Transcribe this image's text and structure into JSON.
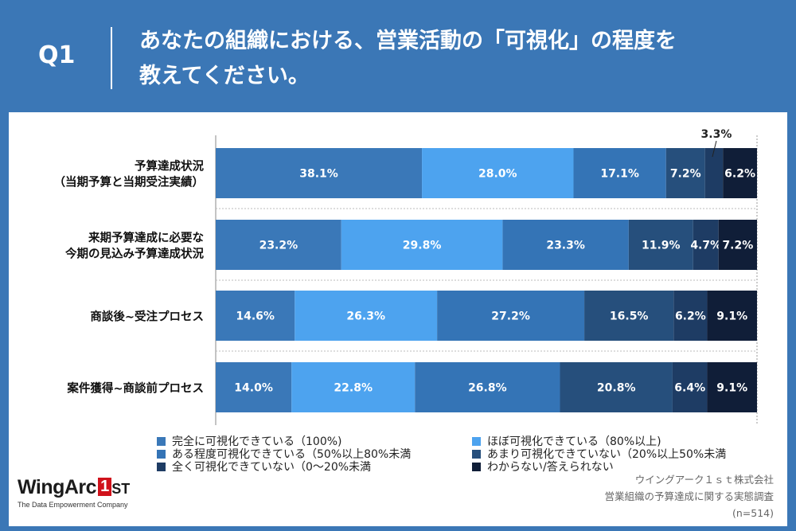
{
  "header": {
    "question_label": "Q1",
    "title_line1": "あなたの組織における、営業活動の「可視化」の程度を",
    "title_line2": "教えてください。"
  },
  "chart_data": {
    "type": "bar",
    "orientation": "horizontal",
    "stacked": true,
    "xlim": [
      0,
      100
    ],
    "categories": [
      [
        "予算達成状況",
        "（当期予算と当期受注実績）"
      ],
      [
        "来期予算達成に必要な",
        "今期の見込み予算達成状況"
      ],
      [
        "商談後~受注プロセス"
      ],
      [
        "案件獲得~商談前プロセス"
      ]
    ],
    "series": [
      {
        "name": "完全に可視化できている（100%)",
        "color": "#3a78b8",
        "values": [
          38.1,
          23.2,
          14.6,
          14.0
        ]
      },
      {
        "name": "ほぼ可視化できている（80%以上)",
        "color": "#4da3ef",
        "values": [
          28.0,
          29.8,
          26.3,
          22.8
        ]
      },
      {
        "name": "ある程度可視化できている（50%以上80%未満",
        "color": "#3474b6",
        "values": [
          17.1,
          23.3,
          27.2,
          26.8
        ]
      },
      {
        "name": "あまり可視化できていない（20%以上50%未満",
        "color": "#264f7c",
        "values": [
          7.2,
          11.9,
          16.5,
          20.8
        ]
      },
      {
        "name": "全く可視化できていない（0〜20%未満",
        "color": "#1e3c64",
        "values": [
          3.3,
          4.7,
          6.2,
          6.4
        ]
      },
      {
        "name": "わからない/答えられない",
        "color": "#101e38",
        "values": [
          6.2,
          7.2,
          9.1,
          9.1
        ]
      }
    ],
    "data_labels": [
      [
        "38.1%",
        "28.0%",
        "17.1%",
        "7.2%",
        "",
        "6.2%"
      ],
      [
        "23.2%",
        "29.8%",
        "23.3%",
        "11.9%",
        "4.7%",
        "7.2%"
      ],
      [
        "14.6%",
        "26.3%",
        "27.2%",
        "16.5%",
        "6.2%",
        "9.1%"
      ],
      [
        "14.0%",
        "22.8%",
        "26.8%",
        "20.8%",
        "6.4%",
        "9.1%"
      ]
    ],
    "callout_label": "3.3%",
    "legend_position": "bottom"
  },
  "source": {
    "company": "ウイングアーク１ｓｔ株式会社",
    "survey": "営業組織の予算達成に関する実態調査",
    "sample": "(n=514)"
  },
  "logo": {
    "word": "WingArc",
    "box": "1",
    "suffix": "ST",
    "tagline": "The Data Empowerment Company"
  }
}
